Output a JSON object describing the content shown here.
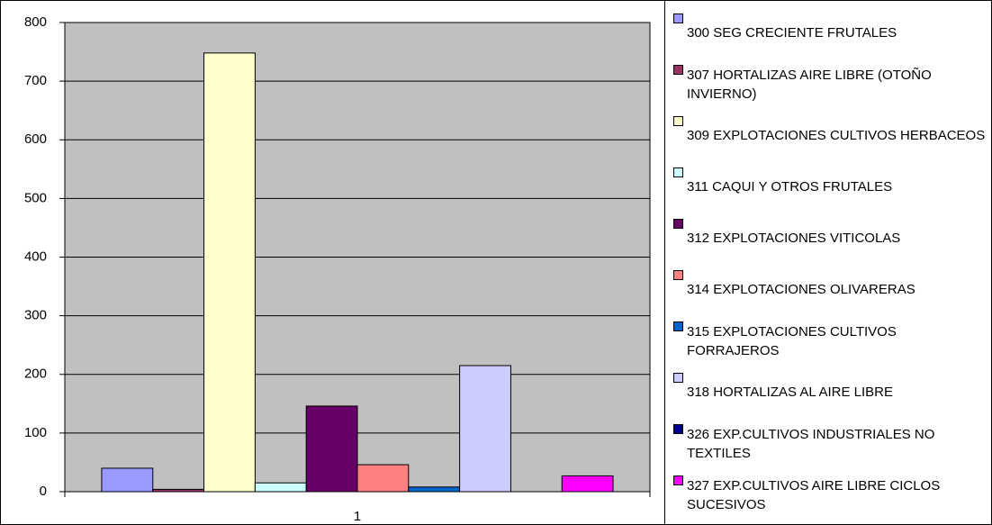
{
  "chart_data": {
    "type": "bar",
    "categories": [
      "1"
    ],
    "series": [
      {
        "name": "300 SEG CRECIENTE FRUTALES",
        "color": "#9999ff",
        "values": [
          40
        ]
      },
      {
        "name": "307 HORTALIZAS AIRE LIBRE (OTOÑO INVIERNO)",
        "color": "#993366",
        "values": [
          4
        ]
      },
      {
        "name": "309 EXPLOTACIONES CULTIVOS HERBACEOS",
        "color": "#ffffcc",
        "values": [
          748
        ]
      },
      {
        "name": "311 CAQUI Y OTROS FRUTALES",
        "color": "#ccffff",
        "values": [
          15
        ]
      },
      {
        "name": "312 EXPLOTACIONES VITICOLAS",
        "color": "#660066",
        "values": [
          146
        ]
      },
      {
        "name": "314 EXPLOTACIONES OLIVARERAS",
        "color": "#ff8080",
        "values": [
          46
        ]
      },
      {
        "name": "315 EXPLOTACIONES CULTIVOS FORRAJEROS",
        "color": "#0066cc",
        "values": [
          8
        ]
      },
      {
        "name": "318 HORTALIZAS AL AIRE LIBRE",
        "color": "#ccccff",
        "values": [
          215
        ]
      },
      {
        "name": "326 EXP.CULTIVOS INDUSTRIALES NO TEXTILES",
        "color": "#000080",
        "values": [
          0
        ]
      },
      {
        "name": "327 EXP.CULTIVOS AIRE LIBRE CICLOS SUCESIVOS",
        "color": "#ff00ff",
        "values": [
          27
        ]
      }
    ],
    "ylim": [
      0,
      800
    ],
    "yticks": [
      0,
      100,
      200,
      300,
      400,
      500,
      600,
      700,
      800
    ],
    "grid": true,
    "legend": "right",
    "plot_background": "#c0c0c0"
  }
}
